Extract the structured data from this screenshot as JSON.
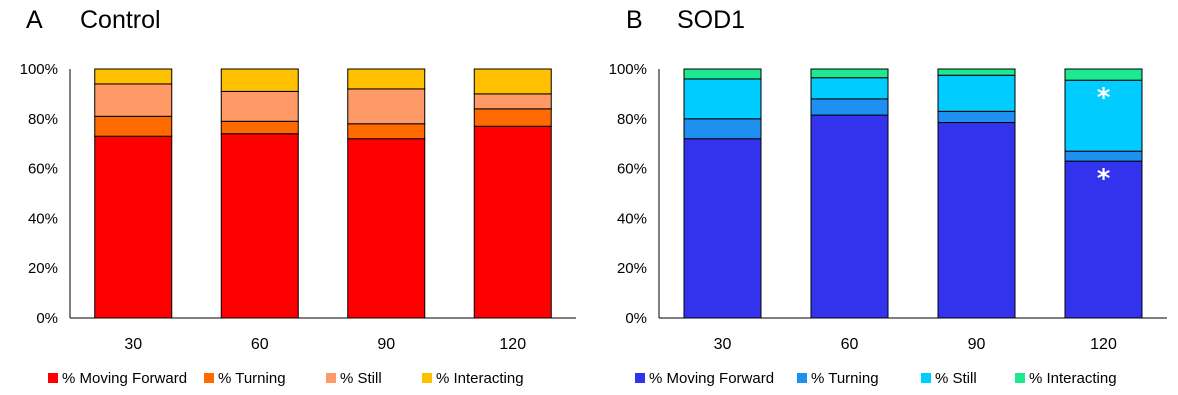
{
  "chart_data": [
    {
      "type": "bar",
      "stacked": true,
      "panel_letter": "A",
      "title": "Control",
      "categories": [
        "30",
        "60",
        "90",
        "120"
      ],
      "ylim": [
        0,
        100
      ],
      "yticks": [
        "0%",
        "20%",
        "40%",
        "60%",
        "80%",
        "100%"
      ],
      "legend_position": "bottom",
      "grid": false,
      "series": [
        {
          "name": "% Moving Forward",
          "color": "#FF0000",
          "values": [
            73,
            74,
            72,
            77
          ]
        },
        {
          "name": "% Turning",
          "color": "#FF6A00",
          "values": [
            8,
            5,
            6,
            7
          ]
        },
        {
          "name": "% Still",
          "color": "#FF9966",
          "values": [
            13,
            12,
            14,
            6
          ]
        },
        {
          "name": "% Interacting",
          "color": "#FFC000",
          "values": [
            6,
            9,
            8,
            10
          ]
        }
      ],
      "annotations": []
    },
    {
      "type": "bar",
      "stacked": true,
      "panel_letter": "B",
      "title": "SOD1",
      "categories": [
        "30",
        "60",
        "90",
        "120"
      ],
      "ylim": [
        0,
        100
      ],
      "yticks": [
        "0%",
        "20%",
        "40%",
        "60%",
        "80%",
        "100%"
      ],
      "legend_position": "bottom",
      "grid": false,
      "series": [
        {
          "name": "% Moving Forward",
          "color": "#3333EE",
          "values": [
            72,
            81.5,
            78.5,
            63
          ]
        },
        {
          "name": "% Turning",
          "color": "#1E90F0",
          "values": [
            8,
            6.5,
            4.5,
            4
          ]
        },
        {
          "name": "% Still",
          "color": "#00CCFF",
          "values": [
            16,
            8.5,
            14.5,
            28.5
          ]
        },
        {
          "name": "% Interacting",
          "color": "#1EE890",
          "values": [
            4,
            3.5,
            2.5,
            4.5
          ]
        }
      ],
      "annotations": [
        {
          "text": "*",
          "category": "120",
          "series": "% Moving Forward"
        },
        {
          "text": "*",
          "category": "120",
          "series": "% Still"
        }
      ]
    }
  ]
}
